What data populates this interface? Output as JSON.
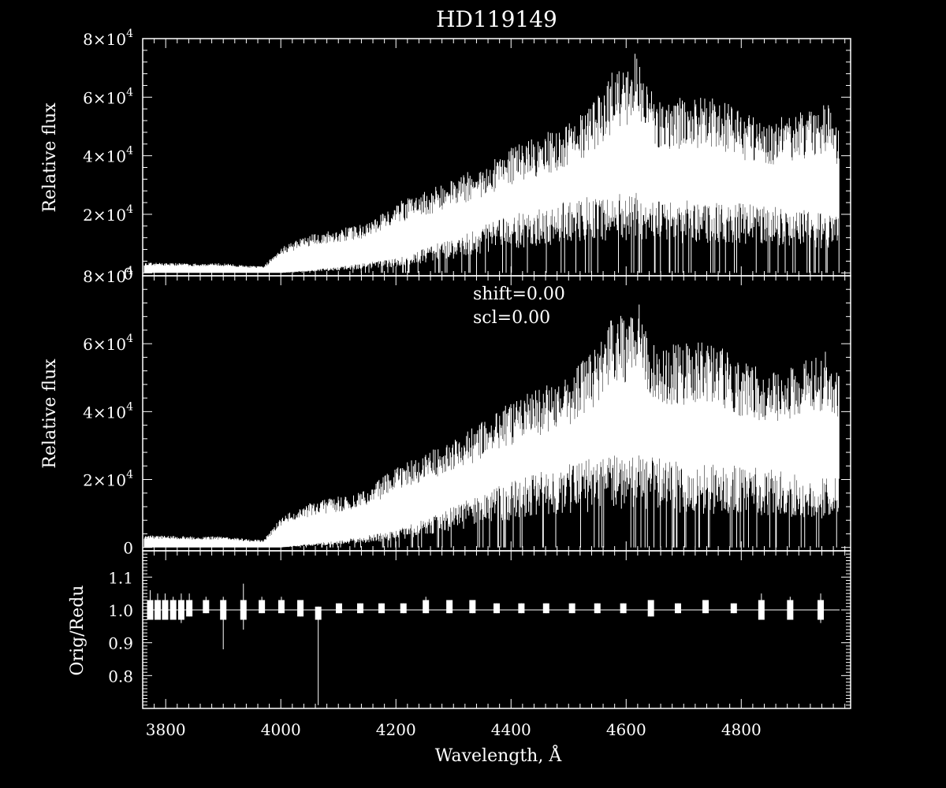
{
  "title": "HD119149",
  "colors": {
    "background": "#000000",
    "foreground": "#ffffff"
  },
  "chart_data": [
    {
      "type": "line",
      "panel": "top",
      "title": "HD119149",
      "xlabel": "",
      "ylabel": "Relative flux",
      "xlim": [
        3760,
        4990
      ],
      "ylim": [
        -1000,
        80000
      ],
      "yticks": [
        {
          "v": 0,
          "label": "0"
        },
        {
          "v": 20000,
          "mant": "2",
          "exp": "4"
        },
        {
          "v": 40000,
          "mant": "4",
          "exp": "4"
        },
        {
          "v": 60000,
          "mant": "6",
          "exp": "4"
        },
        {
          "v": 80000,
          "mant": "8",
          "exp": "4"
        }
      ],
      "upper_envelope": [
        [
          3760,
          3500
        ],
        [
          3800,
          3500
        ],
        [
          3850,
          3200
        ],
        [
          3900,
          3300
        ],
        [
          3940,
          2500
        ],
        [
          3970,
          2200
        ],
        [
          4000,
          9000
        ],
        [
          4050,
          13000
        ],
        [
          4100,
          15000
        ],
        [
          4150,
          17000
        ],
        [
          4200,
          24000
        ],
        [
          4250,
          28000
        ],
        [
          4300,
          32000
        ],
        [
          4350,
          37000
        ],
        [
          4400,
          43000
        ],
        [
          4450,
          47000
        ],
        [
          4500,
          51000
        ],
        [
          4550,
          60000
        ],
        [
          4580,
          70000
        ],
        [
          4600,
          68000
        ],
        [
          4615,
          76000
        ],
        [
          4650,
          60000
        ],
        [
          4700,
          60000
        ],
        [
          4750,
          61000
        ],
        [
          4800,
          55000
        ],
        [
          4850,
          52000
        ],
        [
          4900,
          55000
        ],
        [
          4950,
          58000
        ],
        [
          4980,
          48000
        ]
      ],
      "lower_envelope": [
        [
          3760,
          0
        ],
        [
          3800,
          0
        ],
        [
          3900,
          0
        ],
        [
          4000,
          0
        ],
        [
          4100,
          2000
        ],
        [
          4200,
          5000
        ],
        [
          4300,
          12000
        ],
        [
          4400,
          20000
        ],
        [
          4500,
          25000
        ],
        [
          4600,
          28000
        ],
        [
          4700,
          25000
        ],
        [
          4800,
          24000
        ],
        [
          4900,
          22000
        ],
        [
          4980,
          20000
        ]
      ]
    },
    {
      "type": "line",
      "panel": "middle",
      "xlabel": "",
      "ylabel": "Relative flux",
      "xlim": [
        3760,
        4990
      ],
      "ylim": [
        -1000,
        80000
      ],
      "annotations": [
        "shift=0.00",
        "scl=0.00"
      ],
      "yticks": [
        {
          "v": 0,
          "label": "0"
        },
        {
          "v": 20000,
          "mant": "2",
          "exp": "4"
        },
        {
          "v": 40000,
          "mant": "4",
          "exp": "4"
        },
        {
          "v": 60000,
          "mant": "6",
          "exp": "4"
        },
        {
          "v": 80000,
          "mant": "8",
          "exp": "4"
        }
      ],
      "upper_envelope": [
        [
          3760,
          3500
        ],
        [
          3800,
          3500
        ],
        [
          3850,
          3200
        ],
        [
          3900,
          3300
        ],
        [
          3940,
          2500
        ],
        [
          3970,
          2200
        ],
        [
          4000,
          9000
        ],
        [
          4050,
          13000
        ],
        [
          4100,
          15000
        ],
        [
          4150,
          17000
        ],
        [
          4200,
          24000
        ],
        [
          4250,
          28000
        ],
        [
          4300,
          32000
        ],
        [
          4350,
          37000
        ],
        [
          4400,
          43000
        ],
        [
          4450,
          47000
        ],
        [
          4500,
          51000
        ],
        [
          4550,
          60000
        ],
        [
          4580,
          70000
        ],
        [
          4600,
          68000
        ],
        [
          4615,
          76000
        ],
        [
          4650,
          60000
        ],
        [
          4700,
          60000
        ],
        [
          4750,
          61000
        ],
        [
          4800,
          55000
        ],
        [
          4850,
          52000
        ],
        [
          4900,
          55000
        ],
        [
          4950,
          58000
        ],
        [
          4980,
          48000
        ]
      ],
      "lower_envelope": [
        [
          3760,
          0
        ],
        [
          3800,
          0
        ],
        [
          3900,
          0
        ],
        [
          4000,
          0
        ],
        [
          4100,
          2000
        ],
        [
          4200,
          5000
        ],
        [
          4300,
          12000
        ],
        [
          4400,
          20000
        ],
        [
          4500,
          25000
        ],
        [
          4600,
          28000
        ],
        [
          4700,
          25000
        ],
        [
          4800,
          24000
        ],
        [
          4900,
          22000
        ],
        [
          4980,
          20000
        ]
      ]
    },
    {
      "type": "line",
      "panel": "bottom",
      "xlabel": "Wavelength, Å",
      "ylabel": "Orig/Redu",
      "xlim": [
        3760,
        4990
      ],
      "ylim": [
        0.7,
        1.18
      ],
      "baseline": 1.0,
      "yticks": [
        {
          "v": 0.8,
          "label": "0.8"
        },
        {
          "v": 0.9,
          "label": "0.9"
        },
        {
          "v": 1.0,
          "label": "1.0"
        },
        {
          "v": 1.1,
          "label": "1.1"
        }
      ],
      "xticks": [
        3800,
        4000,
        4200,
        4400,
        4600,
        4800
      ],
      "xtick_labels": [
        "3800",
        "4000",
        "4200",
        "4400",
        "4600",
        "4800"
      ],
      "order_gaps": [
        {
          "x": 3773,
          "lo": 0.97,
          "hi": 1.06
        },
        {
          "x": 3786,
          "lo": 0.97,
          "hi": 1.05
        },
        {
          "x": 3799,
          "lo": 0.97,
          "hi": 1.05
        },
        {
          "x": 3813,
          "lo": 0.97,
          "hi": 1.04
        },
        {
          "x": 3827,
          "lo": 0.96,
          "hi": 1.05
        },
        {
          "x": 3841,
          "lo": 0.98,
          "hi": 1.05
        },
        {
          "x": 3870,
          "lo": 0.99,
          "hi": 1.04
        },
        {
          "x": 3900,
          "lo": 0.88,
          "hi": 1.04
        },
        {
          "x": 3935,
          "lo": 0.94,
          "hi": 1.08
        },
        {
          "x": 3967,
          "lo": 0.99,
          "hi": 1.04
        },
        {
          "x": 4001,
          "lo": 0.99,
          "hi": 1.04
        },
        {
          "x": 4034,
          "lo": 0.98,
          "hi": 1.03
        },
        {
          "x": 4065,
          "lo": 0.71,
          "hi": 1.01
        },
        {
          "x": 4101,
          "lo": 0.99,
          "hi": 1.02
        },
        {
          "x": 4138,
          "lo": 0.99,
          "hi": 1.02
        },
        {
          "x": 4175,
          "lo": 0.99,
          "hi": 1.02
        },
        {
          "x": 4213,
          "lo": 0.99,
          "hi": 1.02
        },
        {
          "x": 4252,
          "lo": 0.99,
          "hi": 1.04
        },
        {
          "x": 4293,
          "lo": 0.99,
          "hi": 1.03
        },
        {
          "x": 4333,
          "lo": 0.99,
          "hi": 1.03
        },
        {
          "x": 4375,
          "lo": 0.99,
          "hi": 1.02
        },
        {
          "x": 4418,
          "lo": 0.99,
          "hi": 1.02
        },
        {
          "x": 4461,
          "lo": 0.99,
          "hi": 1.02
        },
        {
          "x": 4506,
          "lo": 0.99,
          "hi": 1.02
        },
        {
          "x": 4550,
          "lo": 0.99,
          "hi": 1.02
        },
        {
          "x": 4595,
          "lo": 0.99,
          "hi": 1.02
        },
        {
          "x": 4643,
          "lo": 0.98,
          "hi": 1.03
        },
        {
          "x": 4690,
          "lo": 0.99,
          "hi": 1.02
        },
        {
          "x": 4738,
          "lo": 0.99,
          "hi": 1.03
        },
        {
          "x": 4787,
          "lo": 0.99,
          "hi": 1.02
        },
        {
          "x": 4835,
          "lo": 0.97,
          "hi": 1.05
        },
        {
          "x": 4885,
          "lo": 0.97,
          "hi": 1.04
        },
        {
          "x": 4938,
          "lo": 0.96,
          "hi": 1.05
        }
      ]
    }
  ]
}
